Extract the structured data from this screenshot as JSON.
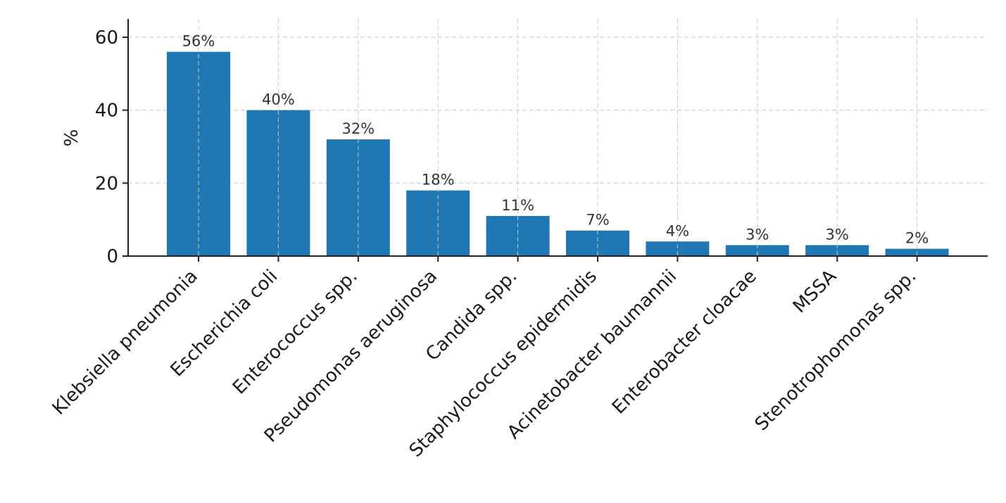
{
  "chart_data": {
    "type": "bar",
    "title": "",
    "xlabel": "",
    "ylabel": "%",
    "ylim": [
      0,
      65
    ],
    "yticks": [
      0,
      20,
      40,
      60
    ],
    "grid": true,
    "bar_color": "#1f77b4",
    "categories": [
      "Klebsiella pneumonia",
      "Escherichia coli",
      "Enterococcus spp.",
      "Pseudomonas aeruginosa",
      "Candida spp.",
      "Staphylococcus epidermidis",
      "Acinetobacter baumannii",
      "Enterobacter cloacae",
      "MSSA",
      "Stenotrophomonas spp."
    ],
    "values": [
      56,
      40,
      32,
      18,
      11,
      7,
      4,
      3,
      3,
      2
    ],
    "value_labels": [
      "56%",
      "40%",
      "32%",
      "18%",
      "11%",
      "7%",
      "4%",
      "3%",
      "3%",
      "2%"
    ]
  }
}
